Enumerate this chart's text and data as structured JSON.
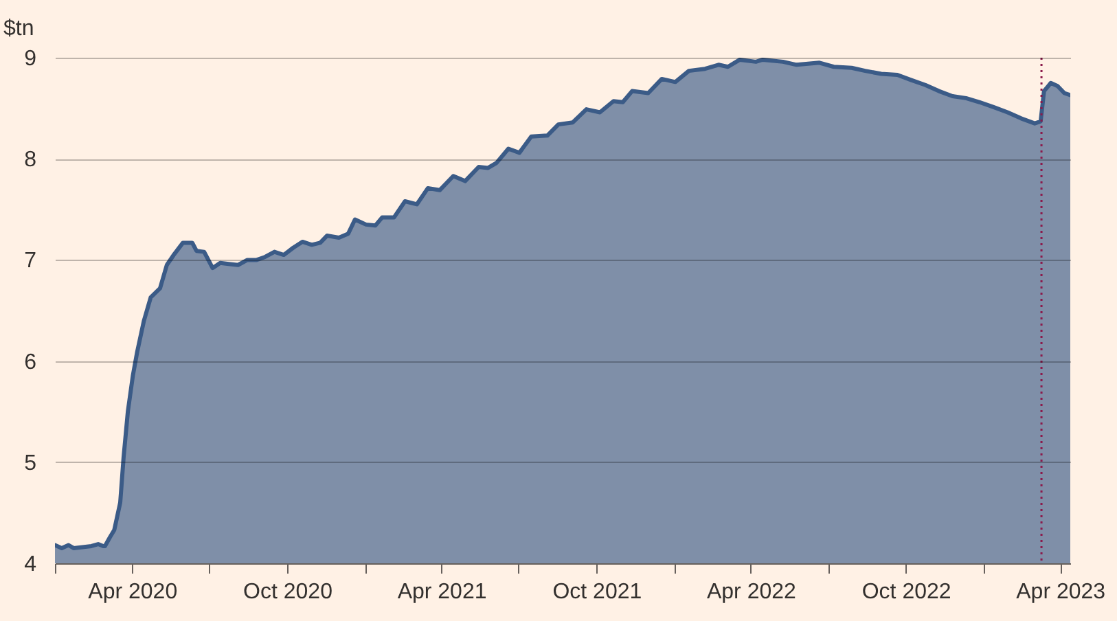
{
  "chart_data": {
    "type": "area",
    "ylabel": "$tn",
    "x": [
      "2020-01-01",
      "2020-01-09",
      "2020-01-17",
      "2020-01-23",
      "2020-02-13",
      "2020-02-21",
      "2020-02-27",
      "2020-02-29",
      "2020-03-06",
      "2020-03-11",
      "2020-03-18",
      "2020-03-22",
      "2020-03-27",
      "2020-04-02",
      "2020-04-07",
      "2020-04-15",
      "2020-04-23",
      "2020-05-04",
      "2020-05-12",
      "2020-05-21",
      "2020-05-31",
      "2020-06-11",
      "2020-06-16",
      "2020-06-25",
      "2020-07-05",
      "2020-07-14",
      "2020-07-24",
      "2020-08-04",
      "2020-08-15",
      "2020-08-26",
      "2020-09-05",
      "2020-09-16",
      "2020-09-27",
      "2020-10-08",
      "2020-10-19",
      "2020-10-30",
      "2020-11-09",
      "2020-11-17",
      "2020-12-01",
      "2020-12-12",
      "2020-12-20",
      "2021-01-02",
      "2021-01-13",
      "2021-01-21",
      "2021-02-04",
      "2021-02-17",
      "2021-03-03",
      "2021-03-16",
      "2021-03-30",
      "2021-04-15",
      "2021-04-29",
      "2021-05-15",
      "2021-05-26",
      "2021-06-05",
      "2021-06-19",
      "2021-07-02",
      "2021-07-16",
      "2021-08-04",
      "2021-08-17",
      "2021-09-03",
      "2021-09-19",
      "2021-10-05",
      "2021-10-21",
      "2021-11-01",
      "2021-11-12",
      "2021-12-01",
      "2021-12-17",
      "2022-01-02",
      "2022-01-18",
      "2022-02-06",
      "2022-02-22",
      "2022-03-05",
      "2022-03-19",
      "2022-04-07",
      "2022-04-15",
      "2022-05-09",
      "2022-05-25",
      "2022-06-21",
      "2022-07-08",
      "2022-07-29",
      "2022-08-14",
      "2022-09-02",
      "2022-09-21",
      "2022-10-07",
      "2022-10-24",
      "2022-11-09",
      "2022-11-25",
      "2022-12-11",
      "2022-12-27",
      "2023-01-13",
      "2023-01-29",
      "2023-02-14",
      "2023-03-02",
      "2023-03-09",
      "2023-03-13",
      "2023-03-21",
      "2023-03-29",
      "2023-04-06",
      "2023-04-13"
    ],
    "series": [
      {
        "color": "#3b5b87",
        "values": [
          4.18,
          4.15,
          4.18,
          4.15,
          4.17,
          4.19,
          4.17,
          4.17,
          4.26,
          4.33,
          4.6,
          5.05,
          5.5,
          5.86,
          6.09,
          6.4,
          6.63,
          6.72,
          6.95,
          7.06,
          7.17,
          7.17,
          7.09,
          7.08,
          6.92,
          6.97,
          6.96,
          6.95,
          7.0,
          7.0,
          7.03,
          7.08,
          7.05,
          7.12,
          7.18,
          7.15,
          7.17,
          7.24,
          7.22,
          7.26,
          7.4,
          7.35,
          7.34,
          7.42,
          7.42,
          7.58,
          7.55,
          7.71,
          7.69,
          7.83,
          7.78,
          7.92,
          7.91,
          7.96,
          8.1,
          8.06,
          8.22,
          8.23,
          8.34,
          8.36,
          8.49,
          8.46,
          8.57,
          8.56,
          8.67,
          8.65,
          8.79,
          8.76,
          8.87,
          8.89,
          8.93,
          8.91,
          8.98,
          8.96,
          8.98,
          8.96,
          8.93,
          8.95,
          8.91,
          8.9,
          8.87,
          8.84,
          8.83,
          8.78,
          8.73,
          8.67,
          8.62,
          8.6,
          8.56,
          8.51,
          8.46,
          8.4,
          8.35,
          8.37,
          8.67,
          8.75,
          8.72,
          8.65,
          8.63
        ]
      }
    ],
    "xlim": [
      "2020-01-01",
      "2023-04-13"
    ],
    "xticks": [
      {
        "value": "2020-01",
        "label": null
      },
      {
        "value": "2020-04",
        "label": "Apr 2020"
      },
      {
        "value": "2020-07",
        "label": null
      },
      {
        "value": "2020-10",
        "label": "Oct 2020"
      },
      {
        "value": "2021-01",
        "label": null
      },
      {
        "value": "2021-04",
        "label": "Apr 2021"
      },
      {
        "value": "2021-07",
        "label": null
      },
      {
        "value": "2021-10",
        "label": "Oct 2021"
      },
      {
        "value": "2022-01",
        "label": null
      },
      {
        "value": "2022-04",
        "label": "Apr 2022"
      },
      {
        "value": "2022-07",
        "label": null
      },
      {
        "value": "2022-10",
        "label": "Oct 2022"
      },
      {
        "value": "2023-01",
        "label": null
      },
      {
        "value": "2023-04",
        "label": "Apr 2023"
      }
    ],
    "ylim": [
      4,
      9
    ],
    "yticks": [
      4,
      5,
      6,
      7,
      8,
      9
    ],
    "grid": "y",
    "ref_lines": [
      {
        "axis": "x",
        "value": "2023-03-10",
        "color": "#8b1a4b",
        "line_style": "dotted"
      }
    ]
  }
}
